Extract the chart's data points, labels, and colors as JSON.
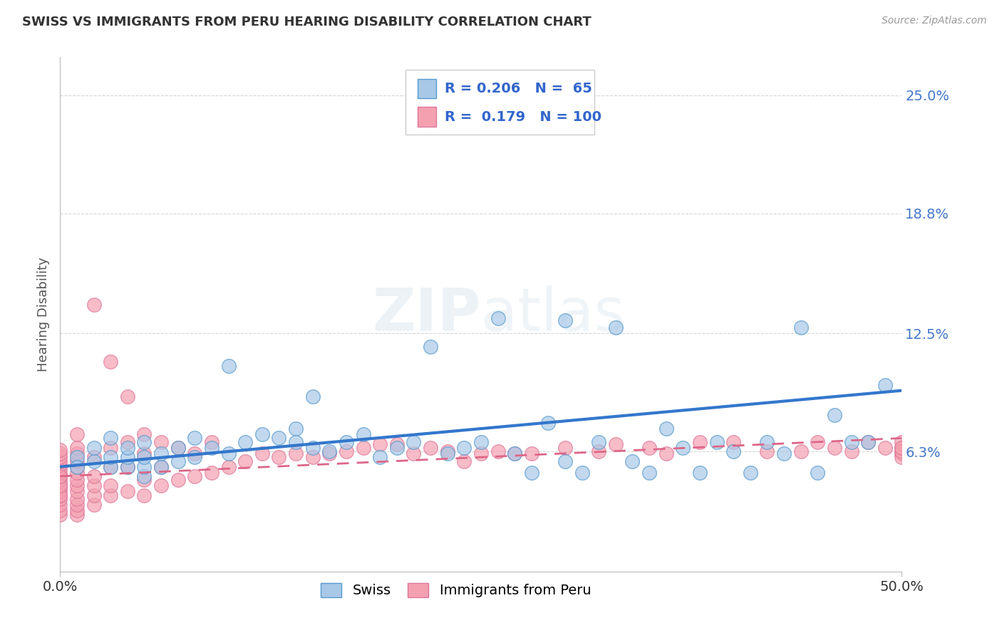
{
  "title": "SWISS VS IMMIGRANTS FROM PERU HEARING DISABILITY CORRELATION CHART",
  "source": "Source: ZipAtlas.com",
  "ylabel": "Hearing Disability",
  "xlim": [
    0.0,
    0.5
  ],
  "ylim": [
    0.0,
    0.27
  ],
  "ytick_labels": [
    "6.3%",
    "12.5%",
    "18.8%",
    "25.0%"
  ],
  "ytick_values": [
    0.063,
    0.125,
    0.188,
    0.25
  ],
  "swiss_color": "#a8c8e8",
  "peru_color": "#f4a0b0",
  "swiss_edge_color": "#5599cc",
  "peru_edge_color": "#dd7799",
  "swiss_line_color": "#3377cc",
  "peru_line_color": "#dd6688",
  "swiss_R": 0.206,
  "swiss_N": 65,
  "peru_R": 0.179,
  "peru_N": 100,
  "watermark": "ZIPatlas",
  "background_color": "#ffffff",
  "grid_color": "#cccccc",
  "swiss_scatter_x": [
    0.01,
    0.01,
    0.02,
    0.02,
    0.03,
    0.03,
    0.03,
    0.04,
    0.04,
    0.04,
    0.05,
    0.05,
    0.05,
    0.05,
    0.06,
    0.06,
    0.07,
    0.07,
    0.08,
    0.08,
    0.09,
    0.1,
    0.1,
    0.11,
    0.12,
    0.13,
    0.14,
    0.14,
    0.15,
    0.15,
    0.16,
    0.17,
    0.18,
    0.19,
    0.2,
    0.21,
    0.22,
    0.23,
    0.24,
    0.25,
    0.26,
    0.27,
    0.28,
    0.29,
    0.3,
    0.3,
    0.31,
    0.32,
    0.33,
    0.34,
    0.35,
    0.36,
    0.37,
    0.38,
    0.39,
    0.4,
    0.41,
    0.42,
    0.43,
    0.44,
    0.45,
    0.46,
    0.47,
    0.48,
    0.49
  ],
  "swiss_scatter_y": [
    0.06,
    0.055,
    0.058,
    0.065,
    0.055,
    0.06,
    0.07,
    0.055,
    0.06,
    0.065,
    0.05,
    0.055,
    0.06,
    0.068,
    0.055,
    0.062,
    0.058,
    0.065,
    0.06,
    0.07,
    0.065,
    0.062,
    0.108,
    0.068,
    0.072,
    0.07,
    0.075,
    0.068,
    0.092,
    0.065,
    0.063,
    0.068,
    0.072,
    0.06,
    0.065,
    0.068,
    0.118,
    0.062,
    0.065,
    0.068,
    0.133,
    0.062,
    0.052,
    0.078,
    0.132,
    0.058,
    0.052,
    0.068,
    0.128,
    0.058,
    0.052,
    0.075,
    0.065,
    0.052,
    0.068,
    0.063,
    0.052,
    0.068,
    0.062,
    0.128,
    0.052,
    0.082,
    0.068,
    0.068,
    0.098
  ],
  "peru_scatter_x": [
    0.0,
    0.0,
    0.0,
    0.0,
    0.0,
    0.0,
    0.0,
    0.0,
    0.0,
    0.0,
    0.0,
    0.0,
    0.0,
    0.0,
    0.0,
    0.0,
    0.0,
    0.0,
    0.0,
    0.0,
    0.01,
    0.01,
    0.01,
    0.01,
    0.01,
    0.01,
    0.01,
    0.01,
    0.01,
    0.01,
    0.01,
    0.01,
    0.01,
    0.02,
    0.02,
    0.02,
    0.02,
    0.02,
    0.02,
    0.03,
    0.03,
    0.03,
    0.03,
    0.03,
    0.04,
    0.04,
    0.04,
    0.04,
    0.05,
    0.05,
    0.05,
    0.05,
    0.06,
    0.06,
    0.06,
    0.07,
    0.07,
    0.08,
    0.08,
    0.09,
    0.09,
    0.1,
    0.11,
    0.12,
    0.13,
    0.14,
    0.15,
    0.16,
    0.17,
    0.18,
    0.19,
    0.2,
    0.21,
    0.22,
    0.23,
    0.24,
    0.25,
    0.26,
    0.27,
    0.28,
    0.3,
    0.32,
    0.33,
    0.35,
    0.36,
    0.38,
    0.4,
    0.42,
    0.44,
    0.45,
    0.46,
    0.47,
    0.48,
    0.49,
    0.5,
    0.5,
    0.5,
    0.5,
    0.5,
    0.5
  ],
  "peru_scatter_y": [
    0.03,
    0.032,
    0.035,
    0.038,
    0.04,
    0.042,
    0.044,
    0.046,
    0.048,
    0.05,
    0.052,
    0.054,
    0.056,
    0.058,
    0.06,
    0.062,
    0.064,
    0.04,
    0.045,
    0.05,
    0.03,
    0.032,
    0.035,
    0.038,
    0.042,
    0.045,
    0.048,
    0.052,
    0.055,
    0.058,
    0.062,
    0.065,
    0.072,
    0.035,
    0.04,
    0.045,
    0.05,
    0.14,
    0.06,
    0.04,
    0.045,
    0.065,
    0.11,
    0.055,
    0.042,
    0.055,
    0.068,
    0.092,
    0.04,
    0.048,
    0.062,
    0.072,
    0.045,
    0.055,
    0.068,
    0.048,
    0.065,
    0.05,
    0.062,
    0.052,
    0.068,
    0.055,
    0.058,
    0.062,
    0.06,
    0.062,
    0.06,
    0.062,
    0.063,
    0.065,
    0.067,
    0.067,
    0.062,
    0.065,
    0.063,
    0.058,
    0.062,
    0.063,
    0.062,
    0.062,
    0.065,
    0.063,
    0.067,
    0.065,
    0.062,
    0.068,
    0.068,
    0.063,
    0.063,
    0.068,
    0.065,
    0.063,
    0.068,
    0.065,
    0.062,
    0.065,
    0.068,
    0.06,
    0.063,
    0.065
  ],
  "swiss_line_x0": 0.0,
  "swiss_line_y0": 0.055,
  "swiss_line_x1": 0.5,
  "swiss_line_y1": 0.095,
  "peru_line_x0": 0.0,
  "peru_line_y0": 0.05,
  "peru_line_x1": 0.5,
  "peru_line_y1": 0.07
}
